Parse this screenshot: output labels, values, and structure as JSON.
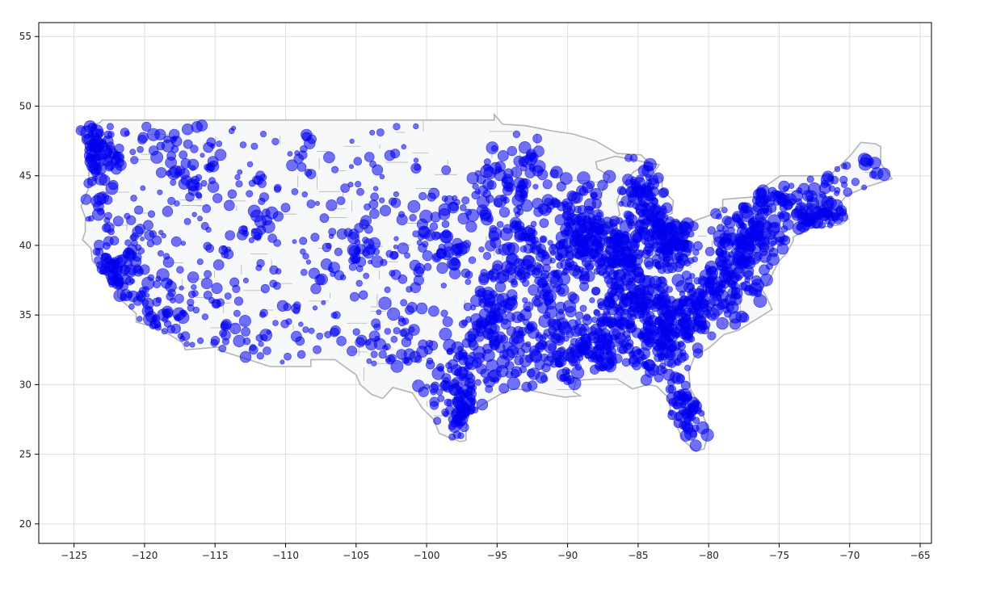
{
  "chart_data": {
    "type": "scatter",
    "title": "",
    "xlabel": "",
    "ylabel": "",
    "xlim": [
      -127.5,
      -64.2
    ],
    "ylim": [
      18.6,
      56.0
    ],
    "x_ticks": [
      -125,
      -120,
      -115,
      -110,
      -105,
      -100,
      -95,
      -90,
      -85,
      -80,
      -75,
      -70,
      -65
    ],
    "y_ticks": [
      20,
      25,
      30,
      35,
      40,
      45,
      50,
      55
    ],
    "x_tick_labels": [
      "−125",
      "−120",
      "−115",
      "−110",
      "−105",
      "−100",
      "−95",
      "−90",
      "−85",
      "−80",
      "−75",
      "−70",
      "−65"
    ],
    "y_tick_labels": [
      "20",
      "25",
      "30",
      "35",
      "40",
      "45",
      "50",
      "55"
    ],
    "grid": true,
    "marker_color": "#0000ee",
    "marker_alpha": 0.55,
    "map_outline_color": "#b4b4b4",
    "map_fill_color": "#f7f8f9",
    "basemap_outline": [
      [
        -124.7,
        48.4
      ],
      [
        -123.2,
        48.8
      ],
      [
        -123.0,
        49.0
      ],
      [
        -110.0,
        49.0
      ],
      [
        -95.2,
        49.0
      ],
      [
        -95.2,
        49.4
      ],
      [
        -94.6,
        48.7
      ],
      [
        -93.0,
        48.6
      ],
      [
        -91.0,
        48.2
      ],
      [
        -89.6,
        48.0
      ],
      [
        -88.0,
        47.5
      ],
      [
        -86.5,
        46.6
      ],
      [
        -84.8,
        46.5
      ],
      [
        -84.2,
        45.9
      ],
      [
        -85.3,
        45.3
      ],
      [
        -86.0,
        44.5
      ],
      [
        -86.5,
        43.2
      ],
      [
        -86.3,
        42.2
      ],
      [
        -86.8,
        41.7
      ],
      [
        -87.6,
        41.7
      ],
      [
        -87.8,
        42.6
      ],
      [
        -87.5,
        44.0
      ],
      [
        -87.0,
        45.0
      ],
      [
        -87.9,
        45.5
      ],
      [
        -88.0,
        46.0
      ],
      [
        -86.6,
        46.4
      ],
      [
        -84.6,
        46.0
      ],
      [
        -83.5,
        45.8
      ],
      [
        -83.9,
        45.2
      ],
      [
        -83.3,
        44.8
      ],
      [
        -83.3,
        44.0
      ],
      [
        -82.5,
        43.2
      ],
      [
        -82.6,
        42.3
      ],
      [
        -83.2,
        42.0
      ],
      [
        -81.8,
        41.5
      ],
      [
        -79.8,
        42.2
      ],
      [
        -79.0,
        42.8
      ],
      [
        -79.0,
        43.3
      ],
      [
        -76.6,
        43.5
      ],
      [
        -76.2,
        44.1
      ],
      [
        -74.9,
        45.0
      ],
      [
        -71.5,
        45.0
      ],
      [
        -71.1,
        45.3
      ],
      [
        -70.0,
        46.4
      ],
      [
        -69.2,
        47.4
      ],
      [
        -68.2,
        47.3
      ],
      [
        -67.8,
        47.1
      ],
      [
        -67.8,
        45.9
      ],
      [
        -67.0,
        44.8
      ],
      [
        -68.8,
        44.2
      ],
      [
        -70.2,
        43.6
      ],
      [
        -70.8,
        42.9
      ],
      [
        -70.6,
        42.6
      ],
      [
        -70.1,
        41.9
      ],
      [
        -70.6,
        41.5
      ],
      [
        -71.3,
        41.4
      ],
      [
        -72.9,
        41.2
      ],
      [
        -74.0,
        40.6
      ],
      [
        -74.0,
        40.3
      ],
      [
        -74.5,
        39.4
      ],
      [
        -75.0,
        38.9
      ],
      [
        -75.4,
        38.1
      ],
      [
        -75.9,
        37.1
      ],
      [
        -76.3,
        37.0
      ],
      [
        -75.9,
        36.3
      ],
      [
        -75.5,
        35.4
      ],
      [
        -76.6,
        34.7
      ],
      [
        -77.9,
        33.9
      ],
      [
        -78.9,
        33.6
      ],
      [
        -79.9,
        32.7
      ],
      [
        -81.0,
        32.0
      ],
      [
        -81.4,
        31.0
      ],
      [
        -81.3,
        29.7
      ],
      [
        -80.6,
        28.4
      ],
      [
        -80.0,
        26.7
      ],
      [
        -80.3,
        25.4
      ],
      [
        -80.9,
        25.2
      ],
      [
        -81.8,
        26.0
      ],
      [
        -82.2,
        26.9
      ],
      [
        -82.7,
        27.9
      ],
      [
        -82.8,
        29.0
      ],
      [
        -83.7,
        29.9
      ],
      [
        -84.3,
        30.0
      ],
      [
        -85.4,
        29.7
      ],
      [
        -86.5,
        30.4
      ],
      [
        -88.0,
        30.4
      ],
      [
        -89.4,
        30.3
      ],
      [
        -89.6,
        29.5
      ],
      [
        -89.1,
        29.2
      ],
      [
        -90.2,
        29.1
      ],
      [
        -91.3,
        29.3
      ],
      [
        -92.7,
        29.6
      ],
      [
        -93.8,
        29.7
      ],
      [
        -94.8,
        29.3
      ],
      [
        -96.0,
        28.6
      ],
      [
        -97.0,
        27.8
      ],
      [
        -97.2,
        26.9
      ],
      [
        -97.2,
        26.0
      ],
      [
        -97.6,
        25.9
      ],
      [
        -98.4,
        26.2
      ],
      [
        -99.1,
        26.5
      ],
      [
        -99.5,
        27.5
      ],
      [
        -100.3,
        28.3
      ],
      [
        -101.0,
        29.4
      ],
      [
        -102.4,
        29.8
      ],
      [
        -103.1,
        29.0
      ],
      [
        -103.9,
        29.3
      ],
      [
        -104.7,
        30.0
      ],
      [
        -105.0,
        30.7
      ],
      [
        -106.5,
        31.8
      ],
      [
        -108.2,
        31.8
      ],
      [
        -108.2,
        31.3
      ],
      [
        -111.1,
        31.3
      ],
      [
        -114.8,
        32.5
      ],
      [
        -114.7,
        32.7
      ],
      [
        -117.1,
        32.5
      ],
      [
        -117.3,
        33.0
      ],
      [
        -118.4,
        33.7
      ],
      [
        -118.9,
        34.0
      ],
      [
        -120.6,
        34.5
      ],
      [
        -120.6,
        35.1
      ],
      [
        -121.9,
        36.3
      ],
      [
        -121.9,
        36.9
      ],
      [
        -122.4,
        37.2
      ],
      [
        -122.5,
        37.8
      ],
      [
        -123.0,
        38.0
      ],
      [
        -123.7,
        38.9
      ],
      [
        -123.8,
        39.8
      ],
      [
        -124.4,
        40.4
      ],
      [
        -124.2,
        41.0
      ],
      [
        -124.2,
        42.0
      ],
      [
        -124.5,
        42.8
      ],
      [
        -124.0,
        44.0
      ],
      [
        -123.9,
        46.2
      ],
      [
        -124.1,
        46.9
      ],
      [
        -124.4,
        47.7
      ],
      [
        -124.7,
        48.4
      ]
    ],
    "clusters": [
      {
        "lon": -124.2,
        "lat": 47.0,
        "slon": 0.7,
        "slat": 1.3,
        "n": 38
      },
      {
        "lon": -122.6,
        "lat": 46.6,
        "slon": 0.8,
        "slat": 1.4,
        "n": 36
      },
      {
        "lon": -122.3,
        "lat": 38.0,
        "slon": 0.9,
        "slat": 1.4,
        "n": 55
      },
      {
        "lon": -119.5,
        "lat": 35.0,
        "slon": 1.6,
        "slat": 1.4,
        "n": 28
      },
      {
        "lon": -118.4,
        "lat": 34.2,
        "slon": 1.0,
        "slat": 0.6,
        "n": 16
      },
      {
        "lon": -121.0,
        "lat": 40.5,
        "slon": 1.5,
        "slat": 1.5,
        "n": 18
      },
      {
        "lon": -116.8,
        "lat": 46.3,
        "slon": 1.4,
        "slat": 1.3,
        "n": 30
      },
      {
        "lon": -112.0,
        "lat": 40.8,
        "slon": 0.7,
        "slat": 1.2,
        "n": 22
      },
      {
        "lon": -112.3,
        "lat": 33.5,
        "slon": 1.2,
        "slat": 1.0,
        "n": 14
      },
      {
        "lon": -105.0,
        "lat": 39.8,
        "slon": 0.7,
        "slat": 1.0,
        "n": 24
      },
      {
        "lon": -101.8,
        "lat": 33.5,
        "slon": 1.0,
        "slat": 2.0,
        "n": 30
      },
      {
        "lon": -98.6,
        "lat": 41.0,
        "slon": 1.4,
        "slat": 2.4,
        "n": 60
      },
      {
        "lon": -97.8,
        "lat": 30.5,
        "slon": 1.5,
        "slat": 1.6,
        "n": 95
      },
      {
        "lon": -97.0,
        "lat": 27.8,
        "slon": 0.9,
        "slat": 0.9,
        "n": 40
      },
      {
        "lon": -95.5,
        "lat": 35.0,
        "slon": 1.2,
        "slat": 1.9,
        "n": 80
      },
      {
        "lon": -93.5,
        "lat": 44.0,
        "slon": 1.7,
        "slat": 1.6,
        "n": 100
      },
      {
        "lon": -92.5,
        "lat": 38.7,
        "slon": 2.0,
        "slat": 1.6,
        "n": 130
      },
      {
        "lon": -91.8,
        "lat": 32.5,
        "slon": 1.8,
        "slat": 1.6,
        "n": 120
      },
      {
        "lon": -89.0,
        "lat": 41.0,
        "slon": 1.2,
        "slat": 1.8,
        "n": 120
      },
      {
        "lon": -86.5,
        "lat": 39.8,
        "slon": 1.3,
        "slat": 1.3,
        "n": 120
      },
      {
        "lon": -84.8,
        "lat": 43.5,
        "slon": 1.0,
        "slat": 1.6,
        "n": 90
      },
      {
        "lon": -82.7,
        "lat": 40.3,
        "slon": 1.0,
        "slat": 1.1,
        "n": 110
      },
      {
        "lon": -85.0,
        "lat": 36.0,
        "slon": 1.8,
        "slat": 1.1,
        "n": 140
      },
      {
        "lon": -87.5,
        "lat": 32.8,
        "slon": 1.7,
        "slat": 1.4,
        "n": 110
      },
      {
        "lon": -83.3,
        "lat": 32.8,
        "slon": 1.3,
        "slat": 1.3,
        "n": 100
      },
      {
        "lon": -81.5,
        "lat": 28.5,
        "slon": 0.9,
        "slat": 1.4,
        "n": 60
      },
      {
        "lon": -81.0,
        "lat": 35.5,
        "slon": 1.3,
        "slat": 1.1,
        "n": 90
      },
      {
        "lon": -78.3,
        "lat": 37.5,
        "slon": 1.3,
        "slat": 1.2,
        "n": 90
      },
      {
        "lon": -77.3,
        "lat": 40.7,
        "slon": 1.5,
        "slat": 1.0,
        "n": 100
      },
      {
        "lon": -74.8,
        "lat": 42.6,
        "slon": 1.4,
        "slat": 1.1,
        "n": 80
      },
      {
        "lon": -71.8,
        "lat": 42.0,
        "slon": 1.0,
        "slat": 0.6,
        "n": 45
      },
      {
        "lon": -71.0,
        "lat": 44.0,
        "slon": 1.1,
        "slat": 0.8,
        "n": 20
      },
      {
        "lon": -69.0,
        "lat": 45.5,
        "slon": 0.8,
        "slat": 0.9,
        "n": 10
      }
    ],
    "sparse_region": {
      "lon_min": -124.0,
      "lon_max": -100.0,
      "lat_min": 31.5,
      "lat_max": 48.8,
      "n": 330
    }
  }
}
